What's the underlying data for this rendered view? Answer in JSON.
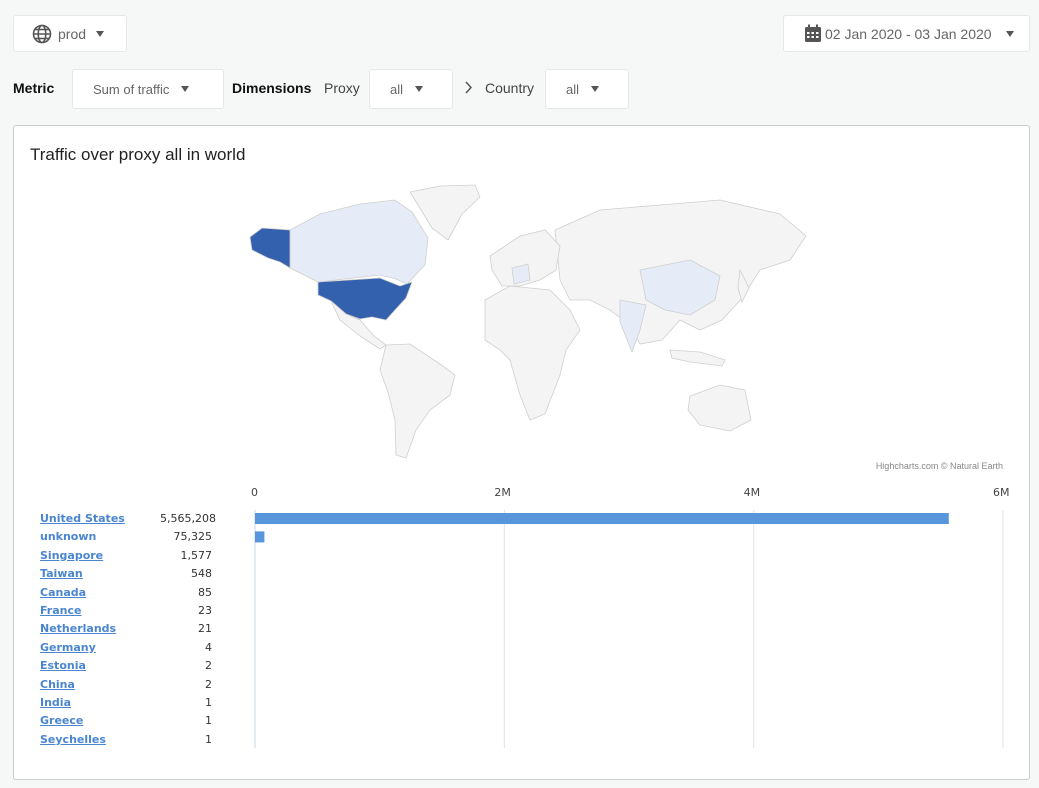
{
  "env_selector": {
    "icon": "globe-icon",
    "value": "prod"
  },
  "date_range": {
    "icon": "calendar-icon",
    "value": "02 Jan 2020 - 03 Jan 2020"
  },
  "filters": {
    "metric_label": "Metric",
    "metric_value": "Sum of traffic",
    "dimensions_label": "Dimensions",
    "proxy_label": "Proxy",
    "proxy_value": "all",
    "country_label": "Country",
    "country_value": "all"
  },
  "card": {
    "title": "Traffic over proxy all in world",
    "credit": "Highcharts.com © Natural Earth"
  },
  "colors": {
    "high": "#3461ad",
    "low": "#e6ecf7",
    "none": "#f4f4f4",
    "bar": "#5896dc"
  },
  "chart_data": {
    "type": "bar",
    "orientation": "horizontal",
    "xlim": [
      0,
      6000000
    ],
    "ticks": [
      "0",
      "2M",
      "4M",
      "6M"
    ],
    "tick_values": [
      0,
      2000000,
      4000000,
      6000000
    ],
    "grid": true,
    "categories": [
      "United States",
      "unknown",
      "Singapore",
      "Taiwan",
      "Canada",
      "France",
      "Netherlands",
      "Germany",
      "Estonia",
      "China",
      "India",
      "Greece",
      "Seychelles"
    ],
    "values": [
      5565208,
      75325,
      1577,
      548,
      85,
      23,
      21,
      4,
      2,
      2,
      1,
      1,
      1
    ],
    "labels": [
      "5,565,208",
      "75,325",
      "1,577",
      "548",
      "85",
      "23",
      "21",
      "4",
      "2",
      "2",
      "1",
      "1",
      "1"
    ]
  }
}
